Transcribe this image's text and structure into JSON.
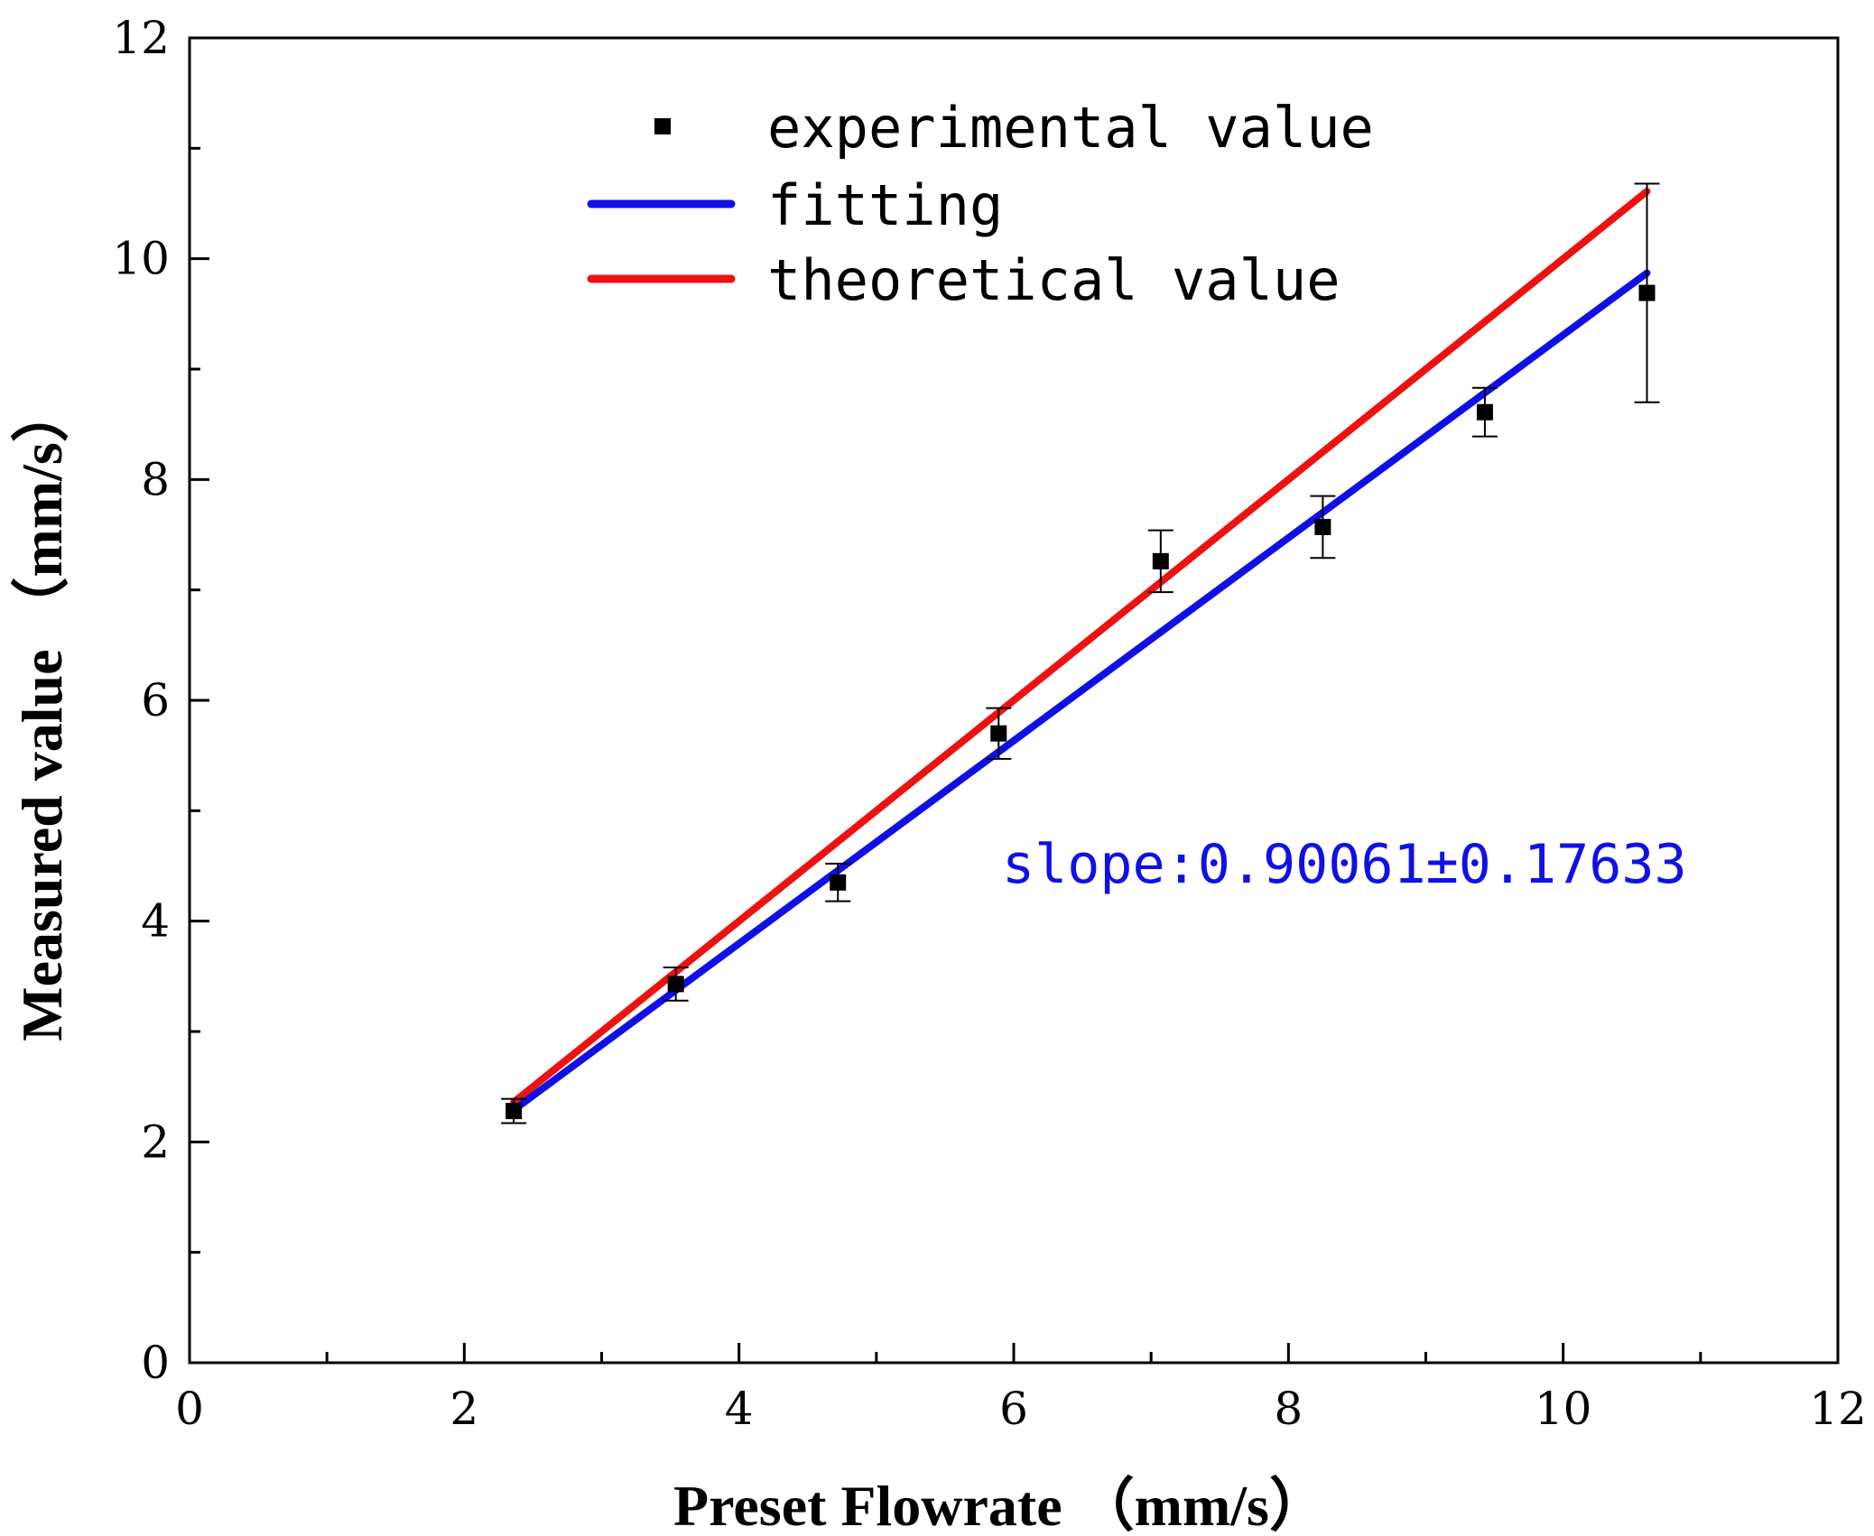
{
  "chart_data": {
    "type": "scatter",
    "title": "",
    "xlabel": "Preset Flowrate （mm/s）",
    "ylabel": "Measured value （mm/s）",
    "xlim": [
      0,
      12
    ],
    "ylim": [
      0,
      12
    ],
    "xticks": [
      0,
      2,
      4,
      6,
      8,
      10,
      12
    ],
    "yticks": [
      0,
      2,
      4,
      6,
      8,
      10,
      12
    ],
    "xtick_labels": [
      "0",
      "2",
      "4",
      "6",
      "8",
      "10",
      "12"
    ],
    "ytick_labels": [
      "0",
      "2",
      "4",
      "6",
      "8",
      "10",
      "12"
    ],
    "grid": false,
    "legend_position": "top-center",
    "series": [
      {
        "name": "experimental value",
        "kind": "scatter-errorbar",
        "color": "#000000",
        "x": [
          2.36,
          3.54,
          4.72,
          5.89,
          7.07,
          8.25,
          9.43,
          10.61
        ],
        "y": [
          2.28,
          3.43,
          4.35,
          5.7,
          7.26,
          7.57,
          8.61,
          9.69
        ],
        "error": [
          0.11,
          0.15,
          0.17,
          0.23,
          0.28,
          0.28,
          0.22,
          0.99
        ]
      },
      {
        "name": "fitting",
        "kind": "line",
        "color": "#1010e6",
        "x": [
          2.36,
          10.61
        ],
        "y": [
          2.29,
          9.87
        ]
      },
      {
        "name": "theoretical value",
        "kind": "line",
        "color": "#ee1111",
        "x": [
          2.36,
          10.61
        ],
        "y": [
          2.36,
          10.61
        ]
      }
    ],
    "annotations": [
      {
        "text": "slope:0.90061±0.17633",
        "color": "#1010e6",
        "x": 6.0,
        "y": 4.52
      }
    ]
  }
}
